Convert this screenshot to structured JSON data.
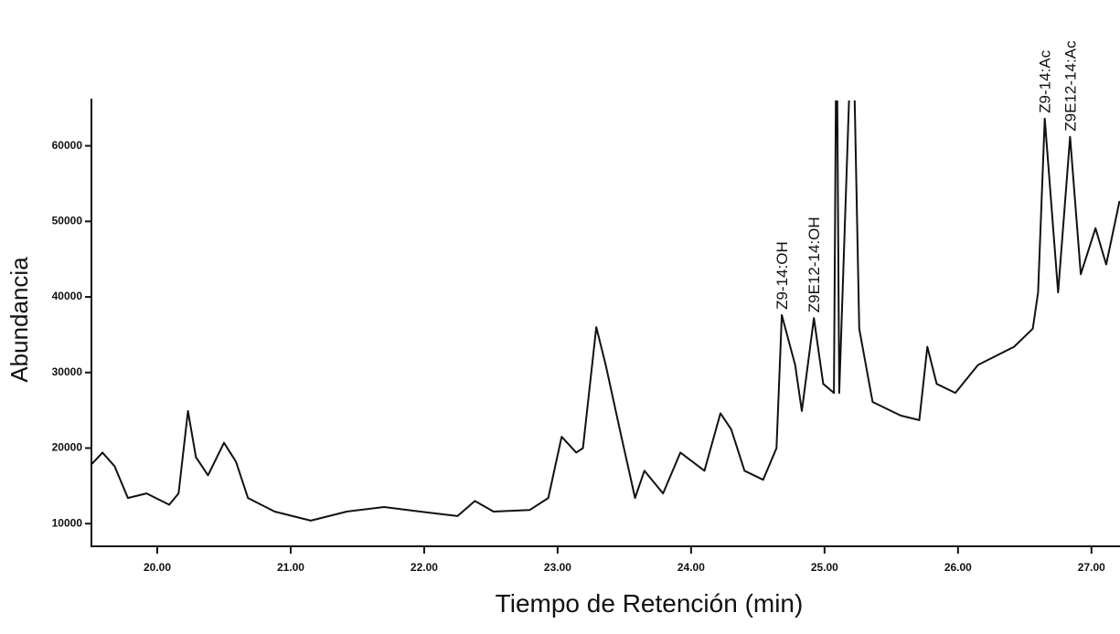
{
  "chart_data": {
    "type": "line",
    "x_label": "Tiempo de Retención (min)",
    "y_label": "Abundancia",
    "x": [
      19.51,
      19.59,
      19.68,
      19.78,
      19.92,
      20.09,
      20.16,
      20.23,
      20.29,
      20.38,
      20.5,
      20.59,
      20.68,
      20.88,
      21.15,
      21.42,
      21.7,
      21.97,
      22.25,
      22.38,
      22.52,
      22.79,
      22.93,
      23.03,
      23.14,
      23.19,
      23.29,
      23.36,
      23.48,
      23.58,
      23.65,
      23.79,
      23.92,
      24.1,
      24.22,
      24.3,
      24.4,
      24.54,
      24.64,
      24.68,
      24.78,
      24.83,
      24.92,
      24.99,
      25.07,
      25.09,
      25.11,
      25.21,
      25.26,
      25.36,
      25.57,
      25.71,
      25.77,
      25.84,
      25.98,
      26.15,
      26.42,
      26.56,
      26.6,
      26.65,
      26.75,
      26.84,
      26.92,
      27.03,
      27.11,
      27.21
    ],
    "series": [
      {
        "color": "#111111",
        "values": [
          17900,
          19400,
          17600,
          13400,
          14000,
          12500,
          14000,
          24900,
          18800,
          16400,
          20700,
          18200,
          13400,
          11600,
          10400,
          11600,
          12200,
          11600,
          11000,
          13000,
          11600,
          11800,
          13400,
          21500,
          19400,
          20000,
          36000,
          31000,
          21300,
          13400,
          17000,
          14000,
          19400,
          17000,
          24600,
          22500,
          17000,
          15800,
          20000,
          37600,
          31000,
          24900,
          37200,
          28500,
          27300,
          80000,
          27300,
          80000,
          35800,
          26100,
          24300,
          23700,
          33400,
          28500,
          27300,
          31000,
          33400,
          35800,
          40600,
          63600,
          40600,
          61200,
          43000,
          49100,
          44300,
          52700
        ]
      }
    ],
    "annotations": [
      {
        "text": "Z9-14:OH",
        "x": 24.68,
        "y": 37600
      },
      {
        "text": "Z9E12-14:OH",
        "x": 24.92,
        "y": 37200
      },
      {
        "text": "Z9-14:Ac",
        "x": 26.65,
        "y": 63600
      },
      {
        "text": "Z9E12-14:Ac",
        "x": 26.84,
        "y": 61200
      }
    ],
    "xlim": [
      19.5,
      27.2
    ],
    "ylim": [
      7000,
      66000
    ],
    "xticks": [
      {
        "value": 20,
        "label": "20.00"
      },
      {
        "value": 21,
        "label": "21.00"
      },
      {
        "value": 22,
        "label": "22.00"
      },
      {
        "value": 23,
        "label": "23.00"
      },
      {
        "value": 24,
        "label": "24.00"
      },
      {
        "value": 25,
        "label": "25.00"
      },
      {
        "value": 26,
        "label": "26.00"
      },
      {
        "value": 27,
        "label": "27.00"
      }
    ],
    "yticks": [
      10000,
      20000,
      30000,
      40000,
      50000,
      60000
    ],
    "grid": false
  }
}
